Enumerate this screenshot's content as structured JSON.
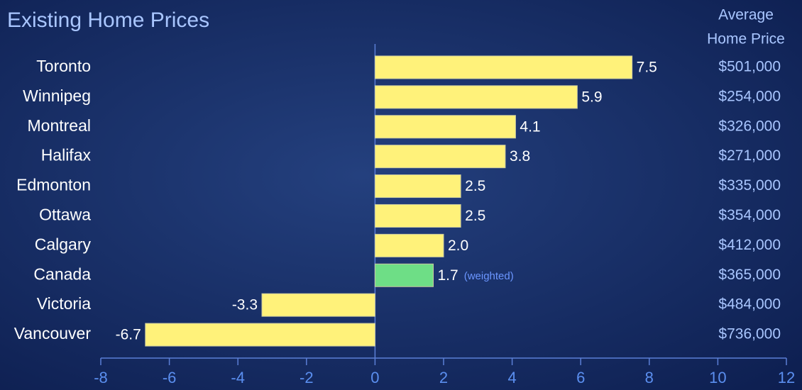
{
  "chart_data": {
    "type": "hbar",
    "title": "Existing Home Prices",
    "categories": [
      "Toronto",
      "Winnipeg",
      "Montreal",
      "Halifax",
      "Edmonton",
      "Ottawa",
      "Calgary",
      "Canada",
      "Victoria",
      "Vancouver"
    ],
    "values": [
      7.5,
      5.9,
      4.1,
      3.8,
      2.5,
      2.5,
      2.0,
      1.7,
      -3.3,
      -6.7
    ],
    "value_labels": [
      "7.5",
      "5.9",
      "4.1",
      "3.8",
      "2.5",
      "2.5",
      "2.0",
      "1.7",
      "-3.3",
      "-6.7"
    ],
    "colors": [
      "#fff27a",
      "#fff27a",
      "#fff27a",
      "#fff27a",
      "#fff27a",
      "#fff27a",
      "#fff27a",
      "#6ede86",
      "#fff27a",
      "#fff27a"
    ],
    "annotation": "(weighted)",
    "price_header": [
      "Average",
      "Home Price"
    ],
    "prices": [
      "$501,000",
      "$254,000",
      "$326,000",
      "$271,000",
      "$335,000",
      "$354,000",
      "$412,000",
      "$365,000",
      "$484,000",
      "$736,000"
    ],
    "xlim": [
      -8,
      12
    ],
    "xticks": [
      -8,
      -6,
      -4,
      -2,
      0,
      2,
      4,
      6,
      8,
      10,
      12
    ]
  }
}
